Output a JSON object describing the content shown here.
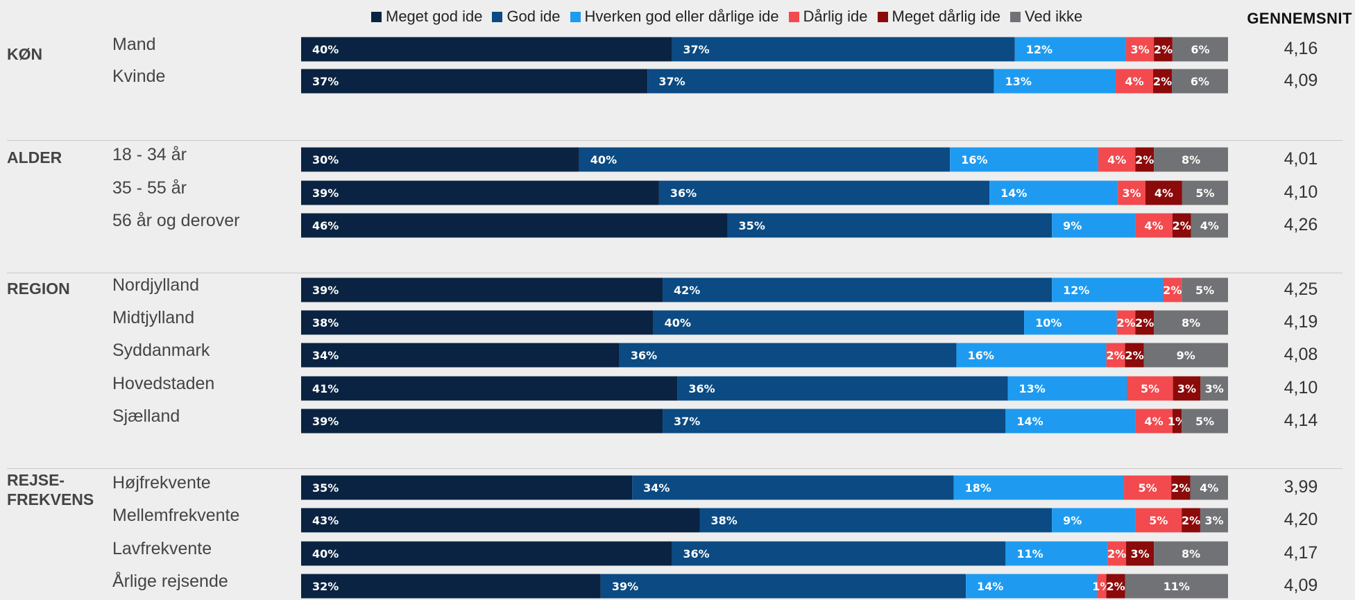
{
  "legend": [
    {
      "label": "Meget god ide",
      "color": "#0a2342"
    },
    {
      "label": "God ide",
      "color": "#0b4a82"
    },
    {
      "label": "Hverken god eller dårlige ide",
      "color": "#1e9bf0"
    },
    {
      "label": "Dårlig ide",
      "color": "#f24a4e"
    },
    {
      "label": "Meget dårlig ide",
      "color": "#8b0a0a"
    },
    {
      "label": "Ved ikke",
      "color": "#717275"
    }
  ],
  "avg_header": "GENNEMSNIT",
  "chart_data": {
    "type": "bar",
    "orientation": "horizontal",
    "stacked": true,
    "series": [
      "Meget god ide",
      "God ide",
      "Hverken god eller dårlige ide",
      "Dårlig ide",
      "Meget dårlig ide",
      "Ved ikke"
    ],
    "groups": [
      {
        "name": "KØN",
        "rows": [
          {
            "label": "Mand",
            "values": [
              40,
              37,
              12,
              3,
              2,
              6
            ],
            "avg": "4,16"
          },
          {
            "label": "Kvinde",
            "values": [
              37,
              37,
              13,
              4,
              2,
              6
            ],
            "avg": "4,09"
          }
        ]
      },
      {
        "name": "ALDER",
        "rows": [
          {
            "label": "18 - 34 år",
            "values": [
              30,
              40,
              16,
              4,
              2,
              8
            ],
            "avg": "4,01"
          },
          {
            "label": "35 - 55 år",
            "values": [
              39,
              36,
              14,
              3,
              4,
              5
            ],
            "avg": "4,10"
          },
          {
            "label": "56 år og derover",
            "values": [
              46,
              35,
              9,
              4,
              2,
              4
            ],
            "avg": "4,26"
          }
        ]
      },
      {
        "name": "REGION",
        "rows": [
          {
            "label": "Nordjylland",
            "values": [
              39,
              42,
              12,
              2,
              0,
              5
            ],
            "avg": "4,25"
          },
          {
            "label": "Midtjylland",
            "values": [
              38,
              40,
              10,
              2,
              2,
              8
            ],
            "avg": "4,19"
          },
          {
            "label": "Syddanmark",
            "values": [
              34,
              36,
              16,
              2,
              2,
              9
            ],
            "avg": "4,08"
          },
          {
            "label": "Hovedstaden",
            "values": [
              41,
              36,
              13,
              5,
              3,
              3
            ],
            "avg": "4,10"
          },
          {
            "label": "Sjælland",
            "values": [
              39,
              37,
              14,
              4,
              1,
              5
            ],
            "avg": "4,14"
          }
        ]
      },
      {
        "name": "REJSE-\nFREKVENS",
        "rows": [
          {
            "label": "Højfrekvente",
            "values": [
              35,
              34,
              18,
              5,
              2,
              4
            ],
            "avg": "3,99"
          },
          {
            "label": "Mellemfrekvente",
            "values": [
              43,
              38,
              9,
              5,
              2,
              3
            ],
            "avg": "4,20"
          },
          {
            "label": "Lavfrekvente",
            "values": [
              40,
              36,
              11,
              2,
              3,
              8
            ],
            "avg": "4,17"
          },
          {
            "label": "Årlige rejsende",
            "values": [
              32,
              39,
              14,
              1,
              2,
              11
            ],
            "avg": "4,09"
          }
        ]
      }
    ]
  }
}
